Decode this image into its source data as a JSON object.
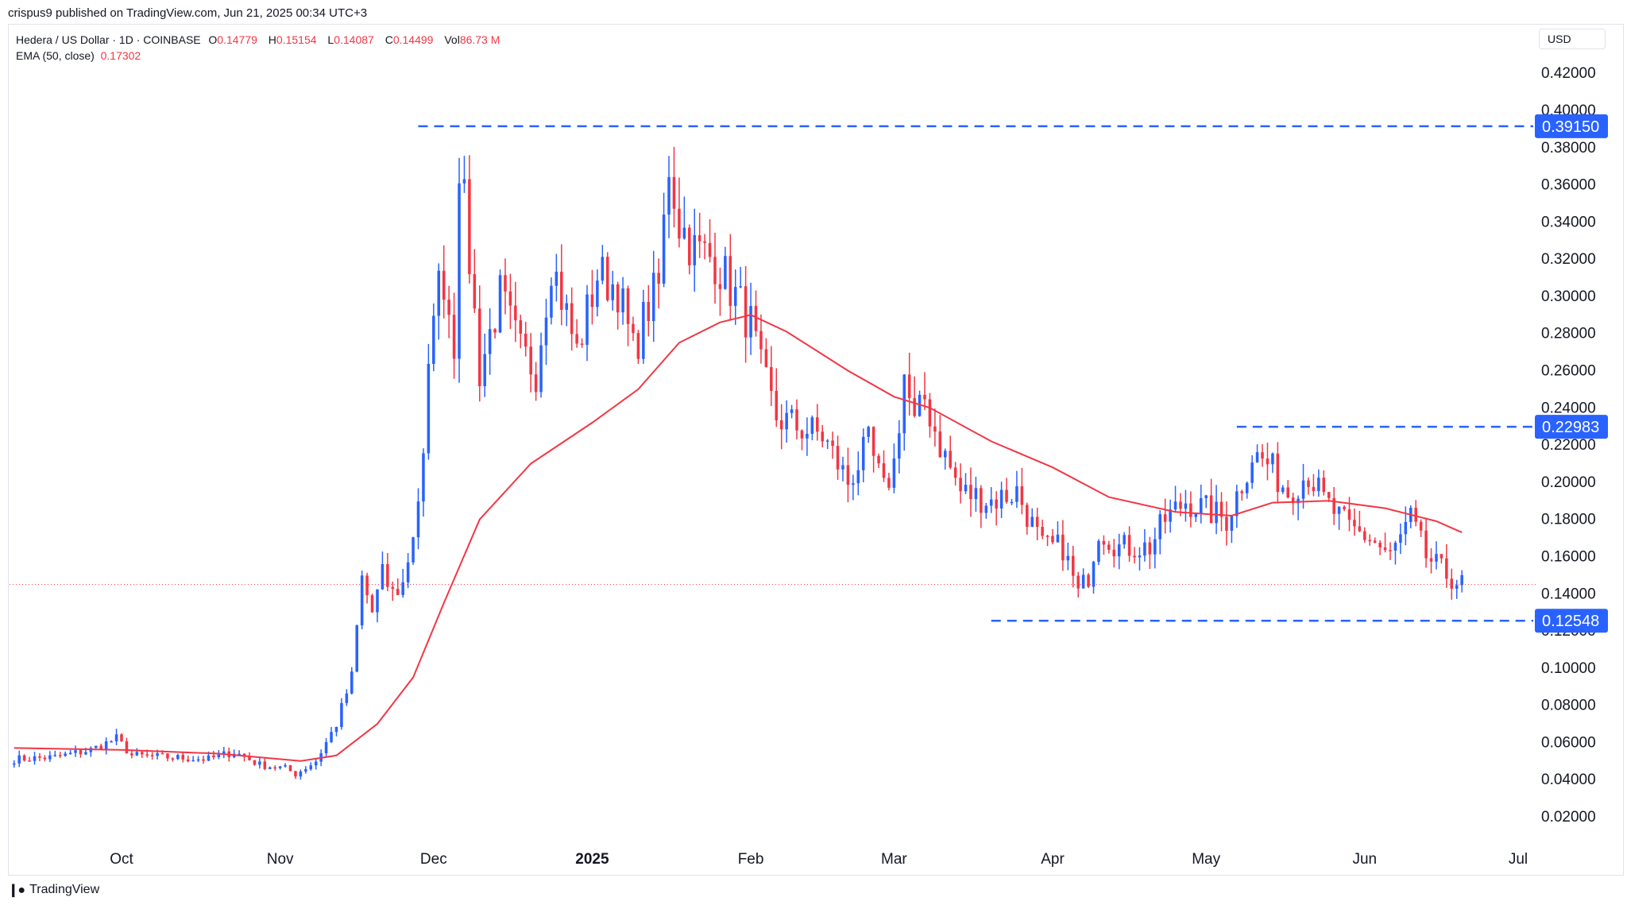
{
  "publish_line": "crispus9 published on TradingView.com, Jun 21, 2025 00:34 UTC+3",
  "legend": {
    "symbol": "Hedera / US Dollar · 1D · COINBASE",
    "open_key": "O",
    "open": "0.14779",
    "high_key": "H",
    "high": "0.15154",
    "low_key": "L",
    "low": "0.14087",
    "close_key": "C",
    "close": "0.14499",
    "vol_key": "Vol",
    "vol": "86.73 M",
    "ema_label": "EMA (50, close)",
    "ema_value": "0.17302"
  },
  "currency": "USD",
  "brand": "TradingView",
  "colors": {
    "up": "#2962ff",
    "down": "#f23645",
    "ema": "#f23645",
    "level_line": "#2962ff",
    "axis_text": "#131722"
  },
  "chart_data": {
    "type": "candlestick",
    "ylim": [
      0,
      0.43
    ],
    "y_ticks": [
      "0.42000",
      "0.40000",
      "0.38000",
      "0.36000",
      "0.34000",
      "0.32000",
      "0.30000",
      "0.28000",
      "0.26000",
      "0.24000",
      "0.22000",
      "0.20000",
      "0.18000",
      "0.16000",
      "0.14000",
      "0.12000",
      "0.10000",
      "0.08000",
      "0.06000",
      "0.04000",
      "0.02000"
    ],
    "x_ticks": [
      {
        "label": "Oct",
        "date": "2024-10-01",
        "bold": false
      },
      {
        "label": "Nov",
        "date": "2024-11-01",
        "bold": false
      },
      {
        "label": "Dec",
        "date": "2024-12-01",
        "bold": false
      },
      {
        "label": "2025",
        "date": "2025-01-01",
        "bold": true
      },
      {
        "label": "Feb",
        "date": "2025-02-01",
        "bold": false
      },
      {
        "label": "Mar",
        "date": "2025-03-01",
        "bold": false
      },
      {
        "label": "Apr",
        "date": "2025-04-01",
        "bold": false
      },
      {
        "label": "May",
        "date": "2025-05-01",
        "bold": false
      },
      {
        "label": "Jun",
        "date": "2025-06-01",
        "bold": false
      },
      {
        "label": "Jul",
        "date": "2025-07-01",
        "bold": false
      }
    ],
    "levels": [
      {
        "value": 0.3915,
        "label": "0.39150",
        "from": "2024-11-28",
        "to": "2025-06-21"
      },
      {
        "value": 0.22983,
        "label": "0.22983",
        "from": "2025-05-07",
        "to": "2025-06-21"
      },
      {
        "value": 0.12548,
        "label": "0.12548",
        "from": "2025-03-20",
        "to": "2025-06-21"
      }
    ],
    "last_price": 0.14499,
    "anchors": [
      [
        "2024-09-10",
        0.051
      ],
      [
        "2024-09-18",
        0.052
      ],
      [
        "2024-09-25",
        0.056
      ],
      [
        "2024-09-30",
        0.062
      ],
      [
        "2024-10-03",
        0.053
      ],
      [
        "2024-10-10",
        0.052
      ],
      [
        "2024-10-18",
        0.051
      ],
      [
        "2024-10-23",
        0.055
      ],
      [
        "2024-10-28",
        0.048
      ],
      [
        "2024-11-02",
        0.046
      ],
      [
        "2024-11-04",
        0.043
      ],
      [
        "2024-11-08",
        0.05
      ],
      [
        "2024-11-12",
        0.07
      ],
      [
        "2024-11-15",
        0.095
      ],
      [
        "2024-11-17",
        0.148
      ],
      [
        "2024-11-19",
        0.13
      ],
      [
        "2024-11-21",
        0.15
      ],
      [
        "2024-11-23",
        0.14
      ],
      [
        "2024-11-25",
        0.145
      ],
      [
        "2024-11-27",
        0.173
      ],
      [
        "2024-11-29",
        0.21
      ],
      [
        "2024-12-01",
        0.3
      ],
      [
        "2024-12-03",
        0.31
      ],
      [
        "2024-12-05",
        0.275
      ],
      [
        "2024-12-06",
        0.375
      ],
      [
        "2024-12-08",
        0.32
      ],
      [
        "2024-12-10",
        0.26
      ],
      [
        "2024-12-14",
        0.3
      ],
      [
        "2024-12-18",
        0.27
      ],
      [
        "2024-12-21",
        0.26
      ],
      [
        "2024-12-24",
        0.32
      ],
      [
        "2024-12-26",
        0.3
      ],
      [
        "2024-12-29",
        0.27
      ],
      [
        "2025-01-02",
        0.312
      ],
      [
        "2025-01-06",
        0.305
      ],
      [
        "2025-01-09",
        0.27
      ],
      [
        "2025-01-12",
        0.295
      ],
      [
        "2025-01-14",
        0.305
      ],
      [
        "2025-01-16",
        0.372
      ],
      [
        "2025-01-18",
        0.34
      ],
      [
        "2025-01-21",
        0.325
      ],
      [
        "2025-01-25",
        0.32
      ],
      [
        "2025-01-28",
        0.305
      ],
      [
        "2025-02-01",
        0.285
      ],
      [
        "2025-02-03",
        0.26
      ],
      [
        "2025-02-06",
        0.235
      ],
      [
        "2025-02-10",
        0.23
      ],
      [
        "2025-02-15",
        0.225
      ],
      [
        "2025-02-20",
        0.2
      ],
      [
        "2025-02-24",
        0.22
      ],
      [
        "2025-02-27",
        0.195
      ],
      [
        "2025-03-01",
        0.21
      ],
      [
        "2025-03-03",
        0.258
      ],
      [
        "2025-03-05",
        0.23
      ],
      [
        "2025-03-07",
        0.245
      ],
      [
        "2025-03-10",
        0.22
      ],
      [
        "2025-03-14",
        0.195
      ],
      [
        "2025-03-20",
        0.19
      ],
      [
        "2025-03-25",
        0.195
      ],
      [
        "2025-03-30",
        0.165
      ],
      [
        "2025-04-03",
        0.165
      ],
      [
        "2025-04-06",
        0.14
      ],
      [
        "2025-04-08",
        0.15
      ],
      [
        "2025-04-10",
        0.175
      ],
      [
        "2025-04-14",
        0.165
      ],
      [
        "2025-04-20",
        0.165
      ],
      [
        "2025-04-23",
        0.18
      ],
      [
        "2025-04-27",
        0.19
      ],
      [
        "2025-05-01",
        0.185
      ],
      [
        "2025-05-05",
        0.18
      ],
      [
        "2025-05-08",
        0.2
      ],
      [
        "2025-05-10",
        0.215
      ],
      [
        "2025-05-13",
        0.21
      ],
      [
        "2025-05-17",
        0.195
      ],
      [
        "2025-05-21",
        0.205
      ],
      [
        "2025-05-24",
        0.19
      ],
      [
        "2025-05-29",
        0.175
      ],
      [
        "2025-06-02",
        0.17
      ],
      [
        "2025-06-06",
        0.16
      ],
      [
        "2025-06-10",
        0.18
      ],
      [
        "2025-06-13",
        0.16
      ],
      [
        "2025-06-17",
        0.15
      ],
      [
        "2025-06-20",
        0.145
      ]
    ],
    "ema": [
      [
        "2024-09-10",
        0.057
      ],
      [
        "2024-10-01",
        0.056
      ],
      [
        "2024-10-20",
        0.054
      ],
      [
        "2024-11-05",
        0.05
      ],
      [
        "2024-11-12",
        0.053
      ],
      [
        "2024-11-20",
        0.07
      ],
      [
        "2024-11-27",
        0.095
      ],
      [
        "2024-12-03",
        0.135
      ],
      [
        "2024-12-10",
        0.18
      ],
      [
        "2024-12-20",
        0.21
      ],
      [
        "2025-01-01",
        0.232
      ],
      [
        "2025-01-10",
        0.25
      ],
      [
        "2025-01-18",
        0.275
      ],
      [
        "2025-01-26",
        0.286
      ],
      [
        "2025-02-01",
        0.29
      ],
      [
        "2025-02-08",
        0.281
      ],
      [
        "2025-02-20",
        0.26
      ],
      [
        "2025-03-01",
        0.246
      ],
      [
        "2025-03-08",
        0.24
      ],
      [
        "2025-03-20",
        0.222
      ],
      [
        "2025-04-01",
        0.208
      ],
      [
        "2025-04-12",
        0.192
      ],
      [
        "2025-04-25",
        0.184
      ],
      [
        "2025-05-06",
        0.182
      ],
      [
        "2025-05-14",
        0.189
      ],
      [
        "2025-05-25",
        0.19
      ],
      [
        "2025-06-05",
        0.186
      ],
      [
        "2025-06-15",
        0.179
      ],
      [
        "2025-06-20",
        0.173
      ]
    ]
  }
}
